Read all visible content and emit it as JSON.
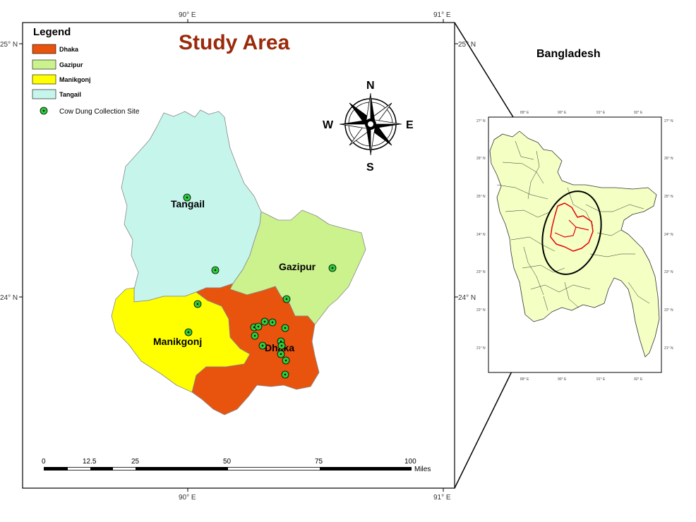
{
  "title": "Study Area",
  "colors": {
    "dhaka": "#E8530E",
    "gazipur": "#CCF28E",
    "manikgonj": "#FFFF00",
    "tangail": "#C6F5EC",
    "title": "#9A2A0A",
    "site": "#2DCB3C",
    "inset_land": "#F3FFC3",
    "inset_highlight": "#E8000C"
  },
  "legend": {
    "heading": "Legend",
    "items": [
      {
        "label": "Dhaka",
        "color": "#E8530E"
      },
      {
        "label": "Gazipur",
        "color": "#CCF28E"
      },
      {
        "label": "Manikgonj",
        "color": "#FFFF00"
      },
      {
        "label": "Tangail",
        "color": "#C6F5EC"
      }
    ],
    "site_label": "Cow Dung Collection Site"
  },
  "districts": {
    "tangail": "Tangail",
    "gazipur": "Gazipur",
    "manikgonj": "Manikgonj",
    "dhaka": "Dhaka"
  },
  "compass": {
    "n": "N",
    "s": "S",
    "e": "E",
    "w": "W",
    "icon": "compass-rose-icon"
  },
  "graticule": {
    "lon_left": "90° E",
    "lon_right": "91° E",
    "lat_top": "25° N",
    "lat_mid": "24° N"
  },
  "scale_bar": {
    "ticks": [
      "0",
      "12.5",
      "25",
      "50",
      "75",
      "100"
    ],
    "unit": "Miles"
  },
  "inset": {
    "title": "Bangladesh",
    "lon_ticks": [
      "89° E",
      "90° E",
      "91° E",
      "92° E"
    ],
    "lat_ticks": [
      "27° N",
      "26° N",
      "25° N",
      "24° N",
      "23° N",
      "22° N",
      "21° N"
    ]
  }
}
